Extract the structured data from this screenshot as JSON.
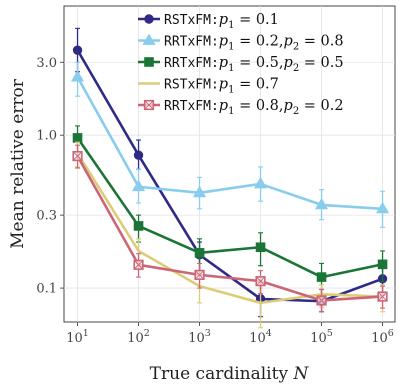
{
  "chart_data": {
    "type": "line",
    "xlabel": "True cardinality N",
    "ylabel": "Mean relative error",
    "x_scale": "log",
    "y_scale": "log",
    "xlim": [
      6,
      1600000
    ],
    "ylim": [
      0.06,
      7.0
    ],
    "grid": true,
    "legend_position": "top-right",
    "x": [
      10,
      100,
      1000,
      10000,
      100000,
      1000000
    ],
    "x_ticks": [
      {
        "value": 10,
        "base": "10",
        "exp": "1"
      },
      {
        "value": 100,
        "base": "10",
        "exp": "2"
      },
      {
        "value": 1000,
        "base": "10",
        "exp": "3"
      },
      {
        "value": 10000,
        "base": "10",
        "exp": "4"
      },
      {
        "value": 100000,
        "base": "10",
        "exp": "5"
      },
      {
        "value": 1000000,
        "base": "10",
        "exp": "6"
      }
    ],
    "y_ticks": [
      {
        "value": 0.1,
        "label": "0.1"
      },
      {
        "value": 0.3,
        "label": "0.3"
      },
      {
        "value": 1.0,
        "label": "1.0"
      },
      {
        "value": 3.0,
        "label": "3.0"
      }
    ],
    "series": [
      {
        "name": "RSTxFM:p1 = 0.1",
        "color": "#2e2a86",
        "marker": "circle",
        "values": [
          3.6,
          0.74,
          0.165,
          0.085,
          0.082,
          0.115
        ],
        "err_low": [
          2.6,
          0.6,
          0.13,
          0.065,
          0.07,
          0.09
        ],
        "err_high": [
          5.0,
          0.93,
          0.2,
          0.11,
          0.098,
          0.14
        ]
      },
      {
        "name": "RRTxFM:p1 = 0.2,p2 = 0.8",
        "color": "#88ccee",
        "marker": "triangle",
        "values": [
          2.4,
          0.46,
          0.42,
          0.48,
          0.35,
          0.33
        ],
        "err_low": [
          1.8,
          0.36,
          0.33,
          0.37,
          0.28,
          0.25
        ],
        "err_high": [
          3.0,
          0.6,
          0.53,
          0.62,
          0.44,
          0.43
        ]
      },
      {
        "name": "RRTxFM:p1 = 0.5,p2 = 0.5",
        "color": "#1a7536",
        "marker": "square",
        "values": [
          0.96,
          0.255,
          0.17,
          0.185,
          0.118,
          0.143
        ],
        "err_low": [
          0.78,
          0.2,
          0.13,
          0.14,
          0.09,
          0.11
        ],
        "err_high": [
          1.15,
          0.3,
          0.21,
          0.23,
          0.145,
          0.175
        ]
      },
      {
        "name": "RSTxFM:p1 = 0.7",
        "color": "#ddcc77",
        "marker": "none",
        "values": [
          0.76,
          0.175,
          0.103,
          0.08,
          0.091,
          0.088
        ],
        "err_low": [
          0.62,
          0.14,
          0.08,
          0.055,
          0.075,
          0.07
        ],
        "err_high": [
          0.9,
          0.21,
          0.13,
          0.1,
          0.105,
          0.105
        ]
      },
      {
        "name": "RRTxFM:p1 = 0.8,p2 = 0.2",
        "color": "#cc6677",
        "marker": "square-open",
        "values": [
          0.73,
          0.142,
          0.122,
          0.111,
          0.083,
          0.088
        ],
        "err_low": [
          0.61,
          0.118,
          0.1,
          0.092,
          0.07,
          0.074
        ],
        "err_high": [
          0.86,
          0.168,
          0.145,
          0.13,
          0.098,
          0.103
        ]
      }
    ],
    "legend": [
      {
        "method": "RSTxFM:",
        "p1": "p",
        "p1sub": "1",
        "eq1": " = 0.1",
        "rest": ""
      },
      {
        "method": "RRTxFM:",
        "p1": "p",
        "p1sub": "1",
        "eq1": " = 0.2,",
        "rest": "p",
        "restsub": "2",
        "eq2": " = 0.8"
      },
      {
        "method": "RRTxFM:",
        "p1": "p",
        "p1sub": "1",
        "eq1": " = 0.5,",
        "rest": "p",
        "restsub": "2",
        "eq2": " = 0.5"
      },
      {
        "method": "RSTxFM:",
        "p1": "p",
        "p1sub": "1",
        "eq1": " = 0.7",
        "rest": ""
      },
      {
        "method": "RRTxFM:",
        "p1": "p",
        "p1sub": "1",
        "eq1": " = 0.8,",
        "rest": "p",
        "restsub": "2",
        "eq2": " = 0.2"
      }
    ]
  }
}
